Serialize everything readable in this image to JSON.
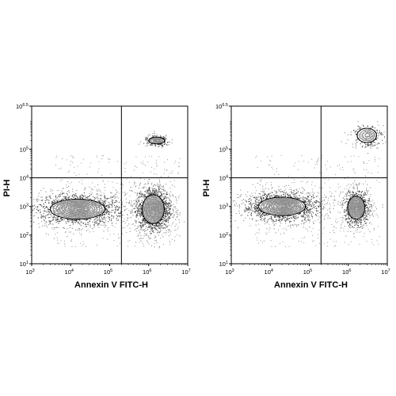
{
  "chart_data": [
    {
      "type": "scatter",
      "subtype": "flow-cytometry-density-contour",
      "xlabel": "Annexin V FITC-H",
      "ylabel": "PI-H",
      "x_scale": "log",
      "y_scale": "log",
      "xlim": [
        1000,
        10000000
      ],
      "ylim": [
        10,
        3162278
      ],
      "x_ticks": [
        {
          "base": "10",
          "exp": "3",
          "value": 1000
        },
        {
          "base": "10",
          "exp": "4",
          "value": 10000
        },
        {
          "base": "10",
          "exp": "5",
          "value": 100000
        },
        {
          "base": "10",
          "exp": "6",
          "value": 1000000
        },
        {
          "base": "10",
          "exp": "7",
          "value": 10000000
        }
      ],
      "y_ticks": [
        {
          "base": "10",
          "exp": "1",
          "value": 10
        },
        {
          "base": "10",
          "exp": "2",
          "value": 100
        },
        {
          "base": "10",
          "exp": "3",
          "value": 1000
        },
        {
          "base": "10",
          "exp": "4",
          "value": 10000
        },
        {
          "base": "10",
          "exp": "5",
          "value": 100000
        },
        {
          "base": "10",
          "exp": "6.5",
          "value": 3162278
        }
      ],
      "quadrant_gates": {
        "x": 200000,
        "y": 10000
      },
      "populations": [
        {
          "x_center": 15000,
          "y_center": 800,
          "x_spread_decades": 0.7,
          "y_spread_decades": 0.35,
          "relative_size": "large"
        },
        {
          "x_center": 1300000,
          "y_center": 800,
          "x_spread_decades": 0.28,
          "y_spread_decades": 0.5,
          "relative_size": "large"
        },
        {
          "x_center": 1600000,
          "y_center": 200000,
          "x_spread_decades": 0.2,
          "y_spread_decades": 0.12,
          "relative_size": "small"
        }
      ],
      "grid": false
    },
    {
      "type": "scatter",
      "subtype": "flow-cytometry-density-contour",
      "xlabel": "Annexin V FITC-H",
      "ylabel": "PI-H",
      "x_scale": "log",
      "y_scale": "log",
      "xlim": [
        1000,
        10000000
      ],
      "ylim": [
        10,
        3162278
      ],
      "x_ticks": [
        {
          "base": "10",
          "exp": "3",
          "value": 1000
        },
        {
          "base": "10",
          "exp": "4",
          "value": 10000
        },
        {
          "base": "10",
          "exp": "5",
          "value": 100000
        },
        {
          "base": "10",
          "exp": "6",
          "value": 1000000
        },
        {
          "base": "10",
          "exp": "7",
          "value": 10000000
        }
      ],
      "y_ticks": [
        {
          "base": "10",
          "exp": "1",
          "value": 10
        },
        {
          "base": "10",
          "exp": "2",
          "value": 100
        },
        {
          "base": "10",
          "exp": "3",
          "value": 1000
        },
        {
          "base": "10",
          "exp": "4",
          "value": 10000
        },
        {
          "base": "10",
          "exp": "5",
          "value": 100000
        },
        {
          "base": "10",
          "exp": "6.5",
          "value": 3162278
        }
      ],
      "quadrant_gates": {
        "x": 200000,
        "y": 10000
      },
      "populations": [
        {
          "x_center": 20000,
          "y_center": 1000,
          "x_spread_decades": 0.6,
          "y_spread_decades": 0.32,
          "relative_size": "large"
        },
        {
          "x_center": 1600000,
          "y_center": 900,
          "x_spread_decades": 0.22,
          "y_spread_decades": 0.4,
          "relative_size": "medium"
        },
        {
          "x_center": 3000000,
          "y_center": 300000,
          "x_spread_decades": 0.25,
          "y_spread_decades": 0.25,
          "relative_size": "small"
        }
      ],
      "grid": false
    }
  ]
}
